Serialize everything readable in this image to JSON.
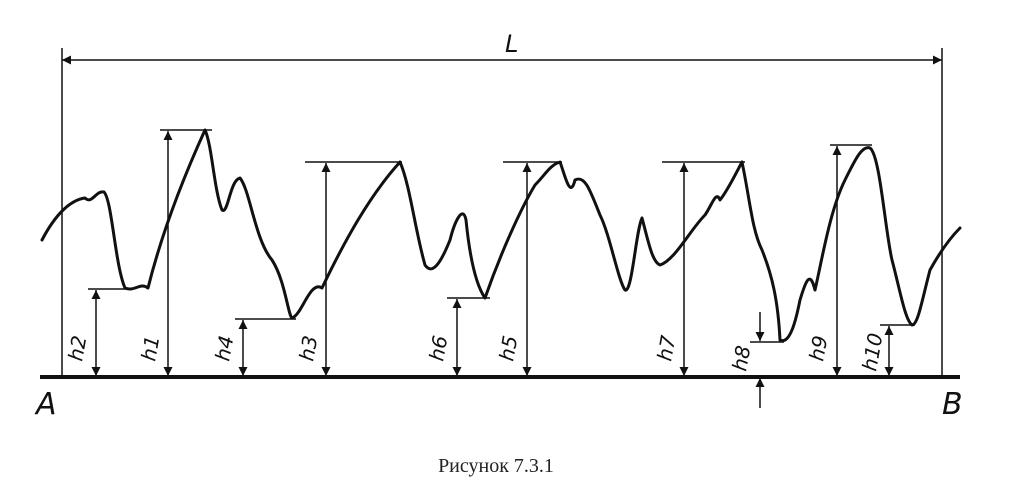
{
  "labels": {
    "length": "L",
    "start": "A",
    "end": "B",
    "heights": [
      "h2",
      "h1",
      "h4",
      "h3",
      "h6",
      "h5",
      "h7",
      "h8",
      "h9",
      "h10"
    ]
  },
  "caption": "Рисунок 7.3.1",
  "colors": {
    "ink": "#111111",
    "caption": "#222222"
  }
}
